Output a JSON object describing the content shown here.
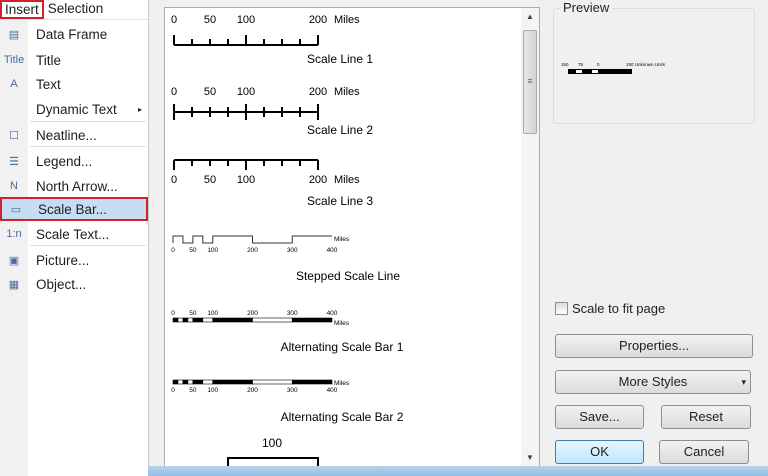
{
  "menubar": {
    "items": [
      "Insert",
      "Selection"
    ]
  },
  "menu": {
    "items": [
      {
        "label": "Data Frame",
        "icon": "data-frame-icon",
        "glyph": "▤"
      },
      {
        "label": "Title",
        "icon": "title-icon",
        "glyph": "Title"
      },
      {
        "label": "Text",
        "icon": "text-icon",
        "glyph": "A"
      },
      {
        "label": "Dynamic Text",
        "icon": "",
        "glyph": "",
        "submenu": "▸"
      },
      {
        "label": "Neatline...",
        "icon": "neatline-icon",
        "glyph": "☐"
      },
      {
        "label": "Legend...",
        "icon": "legend-icon",
        "glyph": "☰"
      },
      {
        "label": "North Arrow...",
        "icon": "north-arrow-icon",
        "glyph": "N"
      },
      {
        "label": "Scale Bar...",
        "icon": "scale-bar-icon",
        "glyph": "▭",
        "selected": true
      },
      {
        "label": "Scale Text...",
        "icon": "scale-text-icon",
        "glyph": "1:n"
      },
      {
        "label": "Picture...",
        "icon": "picture-icon",
        "glyph": "▣"
      },
      {
        "label": "Object...",
        "icon": "object-icon",
        "glyph": "▦"
      }
    ]
  },
  "styles": [
    {
      "name": "Scale Line 1",
      "labels": [
        "0",
        "50",
        "100",
        "200"
      ],
      "unit": "Miles"
    },
    {
      "name": "Scale Line 2",
      "labels": [
        "0",
        "50",
        "100",
        "200"
      ],
      "unit": "Miles"
    },
    {
      "name": "Scale Line 3",
      "labels": [
        "0",
        "50",
        "100",
        "200"
      ],
      "unit": "Miles"
    },
    {
      "name": "Stepped Scale Line",
      "labels": [
        "0",
        "50",
        "100",
        "200",
        "300",
        "400"
      ],
      "unit": "Miles"
    },
    {
      "name": "Alternating Scale Bar 1",
      "labels": [
        "0",
        "50",
        "100",
        "200",
        "300",
        "400"
      ],
      "unit": "Miles"
    },
    {
      "name": "Alternating Scale Bar 2",
      "labels": [
        "0",
        "50",
        "100",
        "200",
        "300",
        "400"
      ],
      "unit": "Miles"
    },
    {
      "name": "",
      "labels": [
        "100"
      ],
      "unit": ""
    }
  ],
  "preview": {
    "title": "Preview",
    "labels": [
      "150",
      "75",
      "0",
      "150 Unknown Units"
    ]
  },
  "options": {
    "scale_to_fit": "Scale to fit page",
    "scale_to_fit_checked": false
  },
  "buttons": {
    "properties": "Properties...",
    "more_styles": "More Styles",
    "dropdown": "▾",
    "save": "Save...",
    "reset": "Reset",
    "ok": "OK",
    "cancel": "Cancel"
  },
  "colors": {
    "highlight": "#c6dcf3",
    "callout": "#d4202a"
  }
}
